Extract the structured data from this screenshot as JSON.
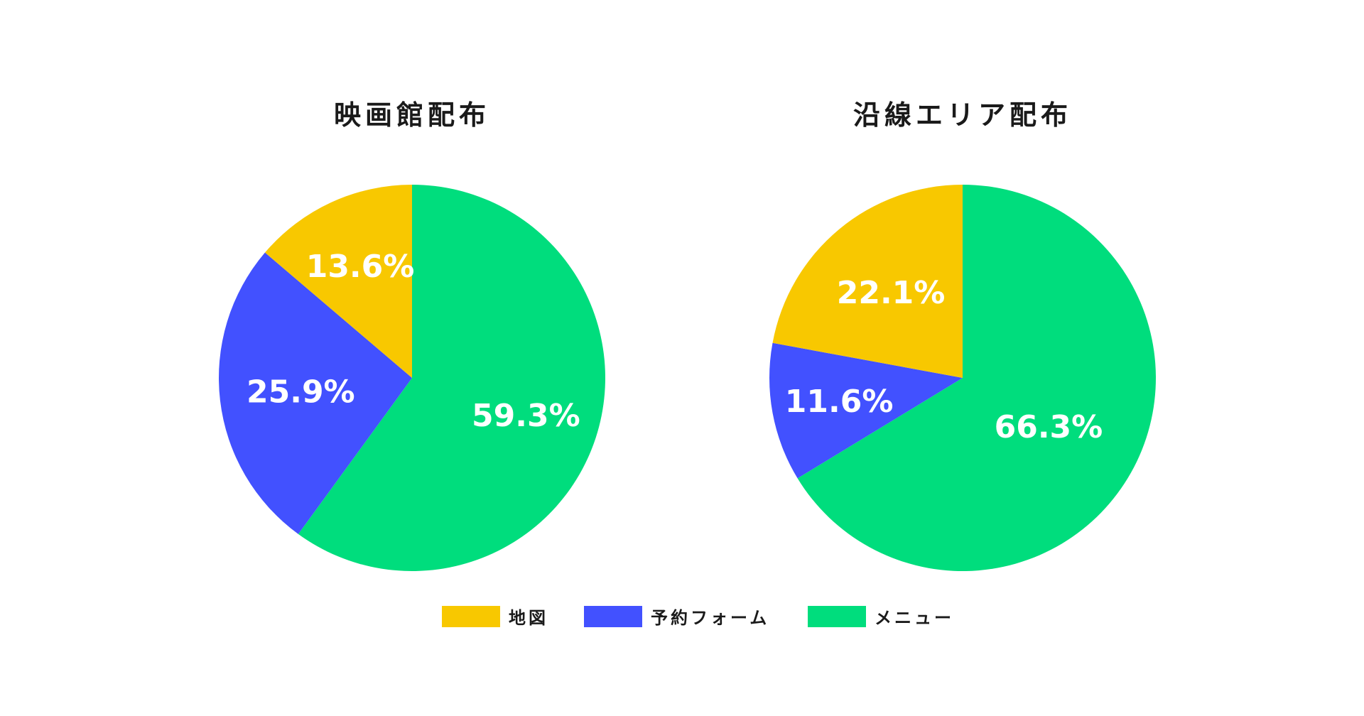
{
  "chart_data": [
    {
      "type": "pie",
      "title": "映画館配布",
      "start": "top, clockwise",
      "slices": [
        {
          "label": "メニュー",
          "value": 59.3,
          "text": "59.3%",
          "color": "#00DD7D"
        },
        {
          "label": "予約フォーム",
          "value": 25.9,
          "text": "25.9%",
          "color": "#4251FF"
        },
        {
          "label": "地図",
          "value": 13.6,
          "text": "13.6%",
          "color": "#F8C800"
        }
      ]
    },
    {
      "type": "pie",
      "title": "沿線エリア配布",
      "start": "top, clockwise",
      "slices": [
        {
          "label": "メニュー",
          "value": 66.3,
          "text": "66.3%",
          "color": "#00DD7D"
        },
        {
          "label": "予約フォーム",
          "value": 11.6,
          "text": "11.6%",
          "color": "#4251FF"
        },
        {
          "label": "地図",
          "value": 22.1,
          "text": "22.1%",
          "color": "#F8C800"
        }
      ]
    }
  ],
  "legend": {
    "placement": "bottom-center",
    "items": [
      {
        "label": "地図",
        "color": "#F8C800"
      },
      {
        "label": "予約フォーム",
        "color": "#4251FF"
      },
      {
        "label": "メニュー",
        "color": "#00DD7D"
      }
    ]
  }
}
